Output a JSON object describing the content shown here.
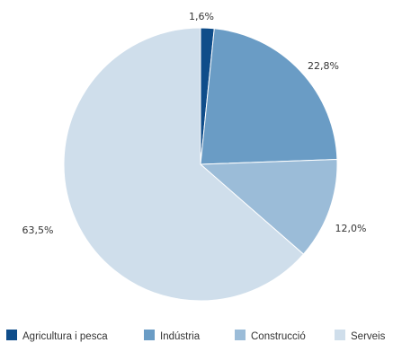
{
  "chart_data": {
    "type": "pie",
    "categories": [
      "Agricultura i pesca",
      "Indústria",
      "Construcció",
      "Serveis"
    ],
    "values": [
      1.6,
      22.8,
      12.0,
      63.5
    ],
    "value_labels": [
      "1,6%",
      "22,8%",
      "12,0%",
      "63,5%"
    ],
    "colors": [
      "#0f4d8a",
      "#6a9cc5",
      "#9bbcd8",
      "#cfdeeb"
    ],
    "start_angle_deg": 0,
    "direction": "clockwise",
    "legend_position": "bottom",
    "title": ""
  }
}
